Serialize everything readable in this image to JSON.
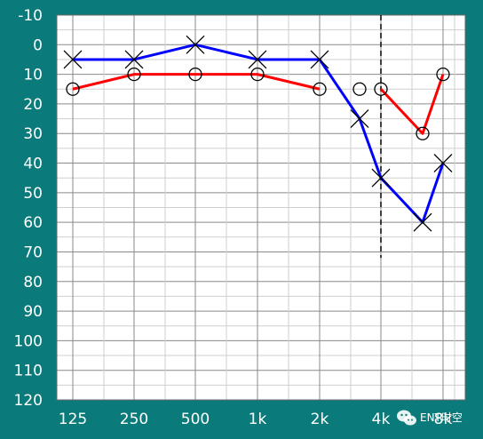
{
  "chart_data": {
    "type": "line",
    "x": [
      "125",
      "250",
      "500",
      "1k",
      "2k",
      "4k",
      "8k"
    ],
    "x_ticks": [
      "125",
      "250",
      "500",
      "1k",
      "2k",
      "4k",
      "8k"
    ],
    "y_ticks": [
      "-10",
      "0",
      "10",
      "20",
      "30",
      "40",
      "50",
      "60",
      "70",
      "80",
      "90",
      "100",
      "110",
      "120"
    ],
    "ylim": [
      -10,
      120
    ],
    "y_inverted": true,
    "grid": true,
    "title": "",
    "xlabel": "",
    "ylabel": "",
    "series": [
      {
        "color": "#ff0000",
        "marker": "circle",
        "points": [
          {
            "x": "125",
            "y": 15
          },
          {
            "x": "250",
            "y": 10
          },
          {
            "x": "500",
            "y": 10
          },
          {
            "x": "1k",
            "y": 10
          },
          {
            "x": "2k",
            "y": 15
          },
          {
            "x": "3k",
            "y": 15
          },
          {
            "x": "4k",
            "y": 15
          },
          {
            "x": "6k",
            "y": 30
          },
          {
            "x": "8k",
            "y": 10
          }
        ],
        "line_segments": [
          [
            0,
            4
          ],
          [
            6,
            8
          ]
        ]
      },
      {
        "color": "#0000ff",
        "marker": "cross",
        "points": [
          {
            "x": "125",
            "y": 5
          },
          {
            "x": "250",
            "y": 5
          },
          {
            "x": "500",
            "y": 0
          },
          {
            "x": "1k",
            "y": 5
          },
          {
            "x": "2k",
            "y": 5
          },
          {
            "x": "3k",
            "y": 25
          },
          {
            "x": "4k",
            "y": 45
          },
          {
            "x": "6k",
            "y": 60
          },
          {
            "x": "8k",
            "y": 40
          }
        ],
        "line_segments": [
          [
            0,
            8
          ]
        ]
      }
    ],
    "annotations": [
      {
        "type": "dashed-vertical-line",
        "x": "4k",
        "y_from": -10,
        "y_to": 72
      }
    ]
  },
  "watermark": {
    "text": "ENT时空",
    "icon": "wechat-icon"
  }
}
